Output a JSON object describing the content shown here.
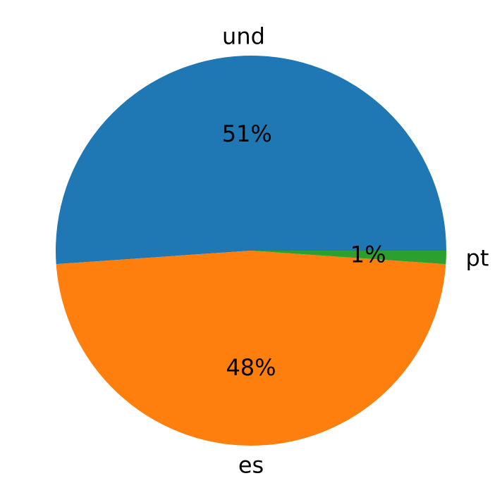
{
  "chart_data": {
    "type": "pie",
    "categories": [
      "und",
      "es",
      "pt"
    ],
    "values": [
      51.1,
      47.8,
      1.1
    ],
    "percent_labels": [
      "51%",
      "48%",
      "1%"
    ],
    "colors": [
      "#1f77b4",
      "#ff7f0e",
      "#2ca02c"
    ],
    "start_angle_deg": 0,
    "direction": "counterclockwise",
    "title": ""
  }
}
